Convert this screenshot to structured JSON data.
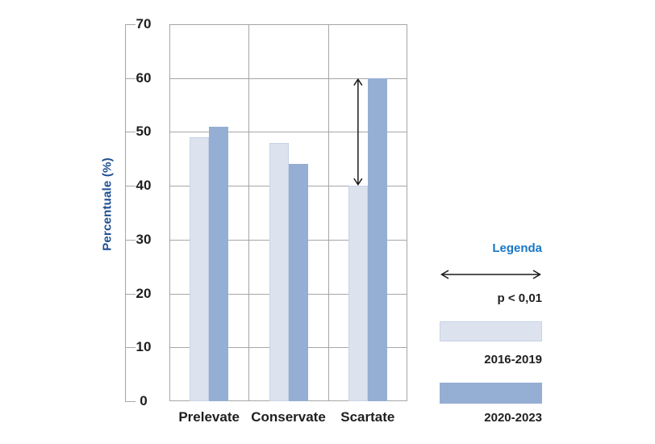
{
  "chart_data": {
    "type": "bar",
    "title": "",
    "ylabel": "Percentuale (%)",
    "xlabel": "",
    "ylim": [
      0,
      70
    ],
    "yticks": [
      0,
      10,
      20,
      30,
      40,
      50,
      60,
      70
    ],
    "grid": true,
    "legend_position": "right",
    "categories": [
      "Prelevate",
      "Conservate",
      "Scartate"
    ],
    "series": [
      {
        "name": "2016-2019",
        "color": "#dce3ef",
        "border_color": "#c9d3e7",
        "values": [
          49,
          48,
          40
        ]
      },
      {
        "name": "2020-2023",
        "color": "#95aed3",
        "border_color": "#95aed3",
        "values": [
          51,
          44,
          60
        ]
      }
    ],
    "annotation": {
      "shape": "vertical-double-arrow",
      "category": "Scartate",
      "category_index": 2,
      "from_value": 40,
      "to_value": 60
    }
  },
  "legend": {
    "title": "Legenda",
    "significance_label": "p < 0,01",
    "items": [
      {
        "label": "2016-2019"
      },
      {
        "label": "2020-2023"
      }
    ]
  },
  "colors": {
    "background": "#ffffff",
    "grid": "#a6a6a6",
    "text": "#1f1f1f",
    "axis_title": "#1e4f91",
    "legend_title": "#1877c5",
    "arrow": "#1a1a1a",
    "series_light": "#dce3ef",
    "series_dark": "#95aed3"
  }
}
